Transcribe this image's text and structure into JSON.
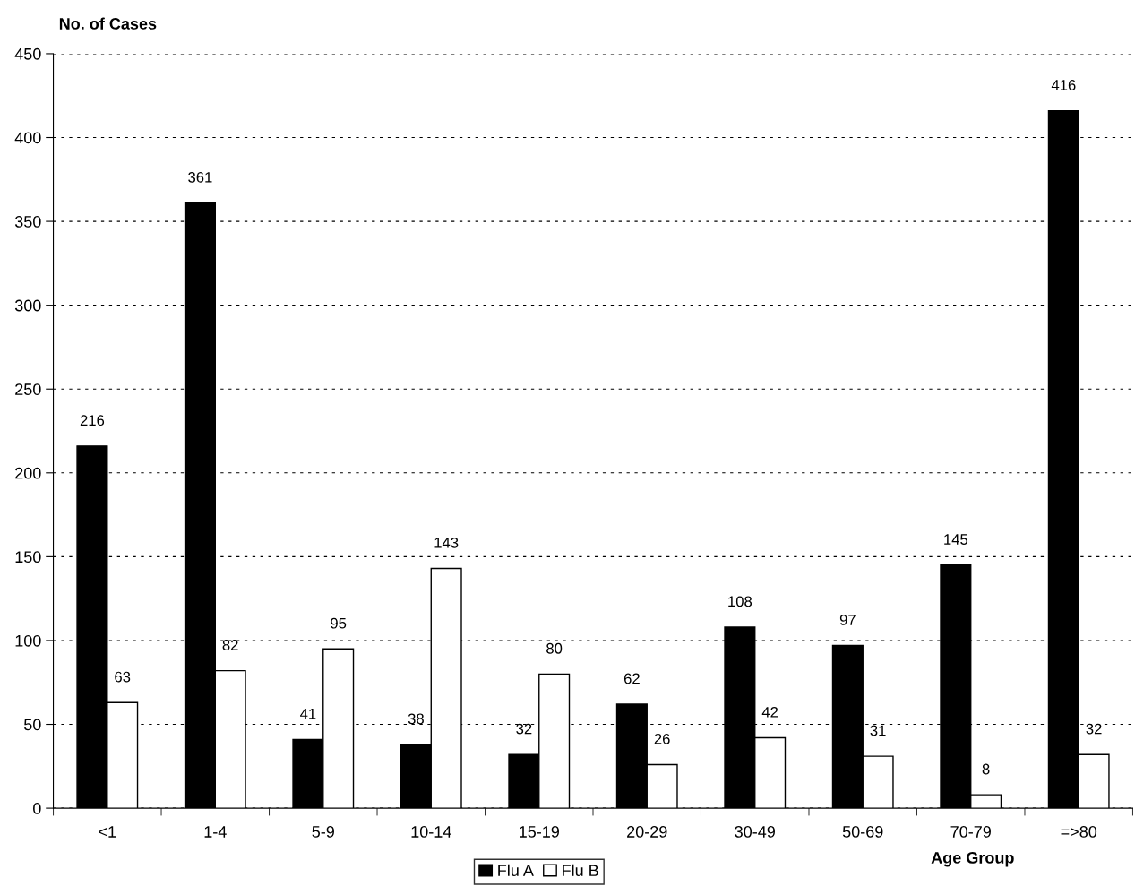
{
  "chart_data": {
    "type": "bar",
    "xlabel": "Age Group",
    "ylabel": "No. of Cases",
    "categories": [
      "<1",
      "1-4",
      "5-9",
      "10-14",
      "15-19",
      "20-29",
      "30-49",
      "50-69",
      "70-79",
      "=>80"
    ],
    "series": [
      {
        "name": "Flu A",
        "color": "#000000",
        "values": [
          216,
          361,
          41,
          38,
          32,
          62,
          108,
          97,
          145,
          416
        ]
      },
      {
        "name": "Flu B",
        "color": "#ffffff",
        "values": [
          63,
          82,
          95,
          143,
          80,
          26,
          42,
          31,
          8,
          32
        ]
      }
    ],
    "ylim": [
      0,
      450
    ],
    "yticks": [
      0,
      50,
      100,
      150,
      200,
      250,
      300,
      350,
      400,
      450
    ],
    "grid": "y",
    "legend": "bottom",
    "data_labels": true
  }
}
